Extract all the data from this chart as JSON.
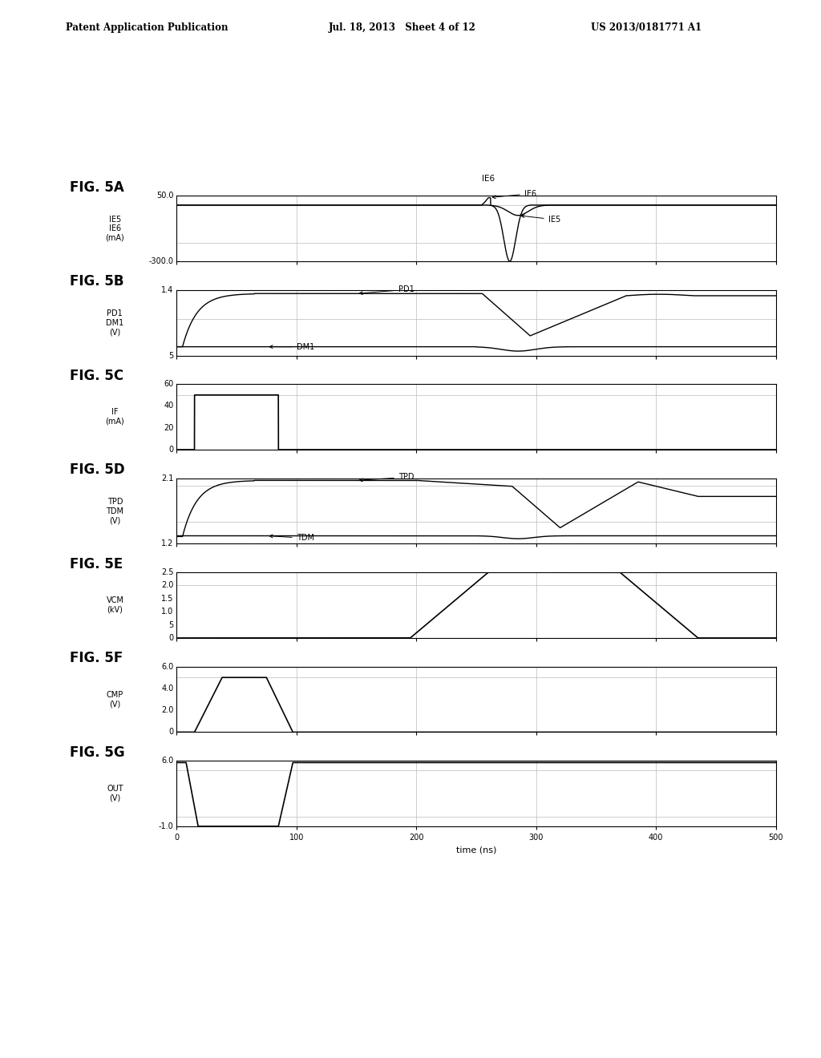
{
  "header_left": "Patent Application Publication",
  "header_mid": "Jul. 18, 2013   Sheet 4 of 12",
  "header_right": "US 2013/0181771 A1",
  "fig_labels": [
    "FIG. 5A",
    "FIG. 5B",
    "FIG. 5C",
    "FIG. 5D",
    "FIG. 5E",
    "FIG. 5F",
    "FIG. 5G"
  ],
  "ylabel_5A": "IE5\nIE6\n(mA)",
  "ylabel_5B": "PD1\nDM1\n(V)",
  "ylabel_5C": "IF\n(mA)",
  "ylabel_5D": "TPD\nTDM\n(V)",
  "ylabel_5E": "VCM\n(kV)",
  "ylabel_5F": "CMP\n(V)",
  "ylabel_5G": "OUT\n(V)",
  "xlim": [
    0,
    500
  ],
  "xticks": [
    0,
    100,
    200,
    300,
    400,
    500
  ],
  "xlabel": "time (ns)",
  "bg_color": "#ffffff",
  "line_color": "#000000",
  "grid_color": "#bbbbbb"
}
